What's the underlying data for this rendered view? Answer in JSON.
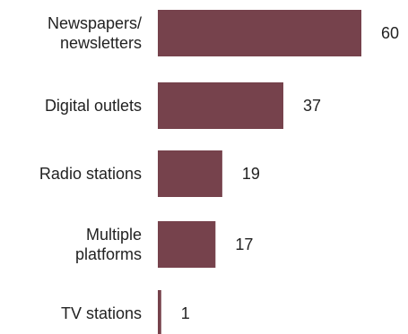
{
  "chart_data": {
    "type": "bar",
    "orientation": "horizontal",
    "categories": [
      [
        "Newspapers/",
        "newsletters"
      ],
      [
        "Digital outlets"
      ],
      [
        "Radio stations"
      ],
      [
        "Multiple",
        "platforms"
      ],
      [
        "TV stations"
      ]
    ],
    "values": [
      60,
      37,
      19,
      17,
      1
    ],
    "value_labels": [
      "60",
      "37",
      "19",
      "17",
      "1"
    ],
    "title": "",
    "xlabel": "",
    "ylabel": "",
    "xlim": [
      0,
      60
    ],
    "grid": false,
    "legend": "none",
    "bar_color": "#76424c"
  }
}
